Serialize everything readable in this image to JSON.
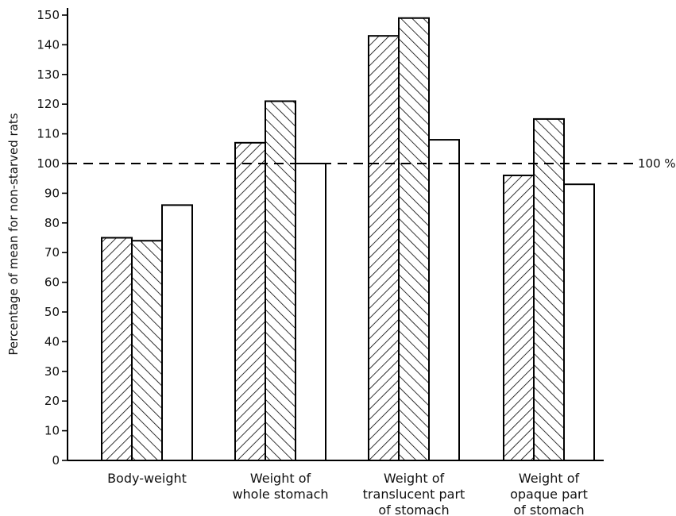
{
  "chart_data": {
    "type": "bar",
    "ylabel": "Percentage of mean for non-starved rats",
    "ylim": [
      0,
      150
    ],
    "yticks": [
      0,
      10,
      20,
      30,
      40,
      50,
      60,
      70,
      80,
      90,
      100,
      110,
      120,
      130,
      140,
      150
    ],
    "categories": [
      [
        "Body-weight"
      ],
      [
        "Weight of",
        "whole stomach"
      ],
      [
        "Weight of",
        "translucent part",
        "of stomach"
      ],
      [
        "Weight of",
        "opaque part",
        "of stomach"
      ]
    ],
    "series": [
      {
        "pattern": "hatch-forward",
        "values": [
          75,
          107,
          143,
          96
        ]
      },
      {
        "pattern": "hatch-back",
        "values": [
          74,
          121,
          149,
          115
        ]
      },
      {
        "pattern": "open",
        "values": [
          86,
          100,
          108,
          93
        ]
      }
    ],
    "reference_line": {
      "value": 100,
      "label": "100 %",
      "style": "dashed"
    },
    "grid": false,
    "colors": {
      "ink": "#000000",
      "fill": "#ffffff"
    }
  }
}
